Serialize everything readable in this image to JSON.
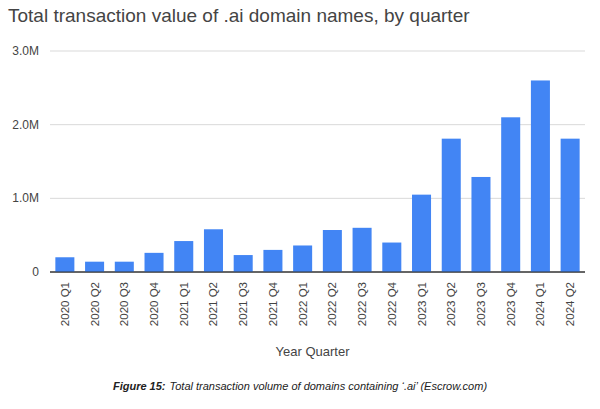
{
  "chart_data": {
    "type": "bar",
    "title": "Total transaction value of .ai domain names, by quarter",
    "x_label": "Year Quarter",
    "caption_label": "Figure 15:",
    "caption": "Total transaction volume of domains containing ‘.ai’ (Escrow.com)",
    "categories": [
      "2020 Q1",
      "2020 Q2",
      "2020 Q3",
      "2020 Q4",
      "2021 Q1",
      "2021 Q2",
      "2021 Q3",
      "2021 Q4",
      "2022 Q1",
      "2022 Q2",
      "2022 Q3",
      "2022 Q4",
      "2023 Q1",
      "2023 Q2",
      "2023 Q3",
      "2023 Q4",
      "2024 Q1",
      "2024 Q2"
    ],
    "values": [
      200000,
      140000,
      140000,
      260000,
      420000,
      580000,
      230000,
      300000,
      360000,
      570000,
      600000,
      400000,
      1050000,
      1810000,
      1290000,
      2100000,
      2600000,
      1810000
    ],
    "color": "#4285f4",
    "ylim": [
      0,
      3000000
    ],
    "yticks": [
      0,
      {
        "value": 1000000,
        "label": "1.0M"
      },
      {
        "value": 2000000,
        "label": "2.0M"
      },
      {
        "value": 3000000,
        "label": "3.0M"
      }
    ],
    "grid": true
  }
}
